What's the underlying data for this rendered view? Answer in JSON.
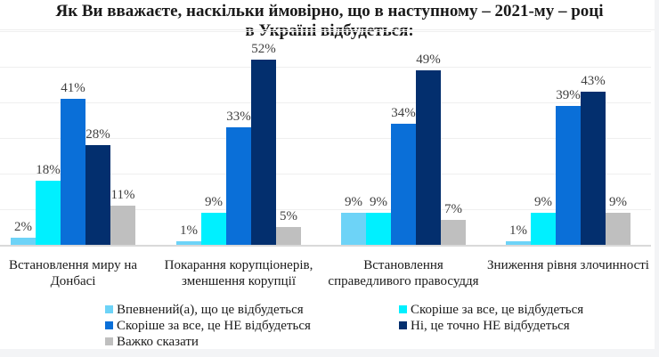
{
  "chart_data": {
    "type": "bar",
    "title": "Як Ви вважаєте, наскільки ймовірно, що в наступному – 2021-му – році в Україні відбудеться:",
    "title_lines": [
      "Як Ви вважаєте, наскільки ймовірно, що в наступному – 2021-му – році",
      "в Україні відбудеться:"
    ],
    "categories": [
      "Встановлення миру на Донбасі",
      "Покарання корупціонерів, зменшення корупції",
      "Встановлення справедливого правосуддя",
      "Зниження рівня злочинності"
    ],
    "category_lines": [
      [
        "Встановлення миру на",
        "Донбасі"
      ],
      [
        "Покарання корупціонерів,",
        "зменшення корупції"
      ],
      [
        "Встановлення",
        "справедливого правосуддя"
      ],
      [
        "Зниження рівня злочинності"
      ]
    ],
    "series": [
      {
        "name": "Впевнений(а), що це відбудеться",
        "color": "#6dd3f7",
        "values": [
          2,
          1,
          9,
          1
        ]
      },
      {
        "name": "Скоріше за все, це відбудеться",
        "color": "#00f0ff",
        "values": [
          18,
          9,
          9,
          9
        ]
      },
      {
        "name": "Скоріше за все,  це НЕ відбудеться",
        "color": "#0a6fd8",
        "values": [
          41,
          33,
          34,
          39
        ]
      },
      {
        "name": "Ні, це точно НЕ відбудеться",
        "color": "#032f6e",
        "values": [
          28,
          52,
          49,
          43
        ]
      },
      {
        "name": "Важко сказати",
        "color": "#bfbfbf",
        "values": [
          11,
          5,
          7,
          9
        ]
      }
    ],
    "value_suffix": "%",
    "xlabel": "",
    "ylabel": "",
    "ylim": [
      0,
      60
    ],
    "grid": true,
    "legend_position": "bottom"
  }
}
